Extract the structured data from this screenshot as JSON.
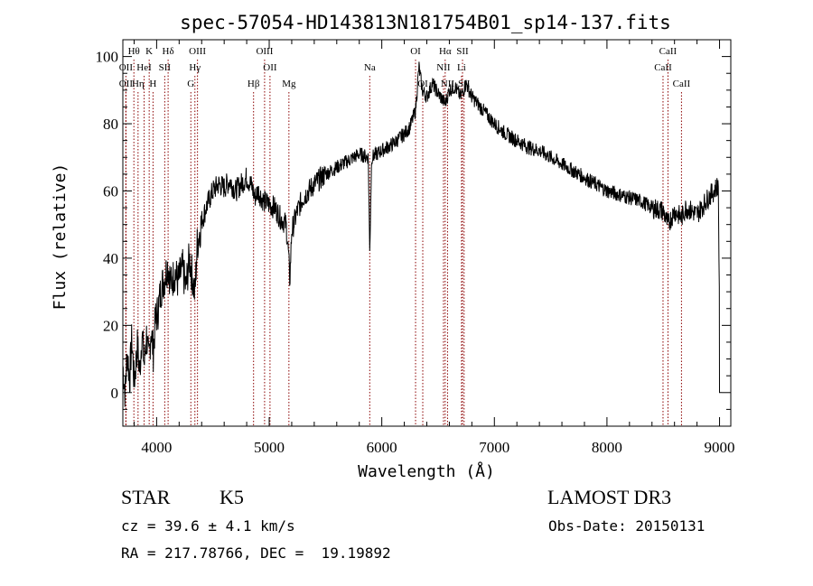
{
  "chart_data": {
    "type": "line",
    "title": "spec-57054-HD143813N181754B01_sp14-137.fits",
    "xlabel": "Wavelength (Å)",
    "ylabel": "Flux (relative)",
    "xlim": [
      3700,
      9100
    ],
    "ylim": [
      -10,
      105
    ],
    "xticks": [
      4000,
      5000,
      6000,
      7000,
      8000,
      9000
    ],
    "yticks": [
      0,
      20,
      40,
      60,
      80,
      100
    ],
    "grid": false,
    "line_color": "#000000",
    "marker_color": "#8b0000",
    "spectrum_anchors": [
      [
        3700,
        8
      ],
      [
        3720,
        0
      ],
      [
        3740,
        12
      ],
      [
        3760,
        4
      ],
      [
        3780,
        16
      ],
      [
        3800,
        3
      ],
      [
        3830,
        14
      ],
      [
        3850,
        6
      ],
      [
        3870,
        18
      ],
      [
        3890,
        8
      ],
      [
        3910,
        17
      ],
      [
        3930,
        9
      ],
      [
        3950,
        19
      ],
      [
        3970,
        12
      ],
      [
        3990,
        22
      ],
      [
        4010,
        24
      ],
      [
        4040,
        31
      ],
      [
        4070,
        34
      ],
      [
        4100,
        38
      ],
      [
        4130,
        32
      ],
      [
        4160,
        36
      ],
      [
        4190,
        33
      ],
      [
        4230,
        37
      ],
      [
        4260,
        31
      ],
      [
        4290,
        40
      ],
      [
        4320,
        34
      ],
      [
        4340,
        29
      ],
      [
        4360,
        44
      ],
      [
        4400,
        51
      ],
      [
        4450,
        56
      ],
      [
        4500,
        60
      ],
      [
        4550,
        62
      ],
      [
        4600,
        61
      ],
      [
        4650,
        63
      ],
      [
        4700,
        60
      ],
      [
        4750,
        62
      ],
      [
        4800,
        64
      ],
      [
        4850,
        61
      ],
      [
        4870,
        58
      ],
      [
        4900,
        60
      ],
      [
        4950,
        57
      ],
      [
        5000,
        56
      ],
      [
        5050,
        55
      ],
      [
        5100,
        52
      ],
      [
        5150,
        50
      ],
      [
        5170,
        42
      ],
      [
        5183,
        33
      ],
      [
        5200,
        48
      ],
      [
        5250,
        54
      ],
      [
        5300,
        58
      ],
      [
        5400,
        62
      ],
      [
        5500,
        65
      ],
      [
        5600,
        67
      ],
      [
        5700,
        69
      ],
      [
        5800,
        71
      ],
      [
        5880,
        70
      ],
      [
        5893,
        42
      ],
      [
        5910,
        70
      ],
      [
        6000,
        72
      ],
      [
        6100,
        74
      ],
      [
        6200,
        77
      ],
      [
        6250,
        79
      ],
      [
        6300,
        84
      ],
      [
        6330,
        97
      ],
      [
        6360,
        90
      ],
      [
        6400,
        88
      ],
      [
        6450,
        92
      ],
      [
        6500,
        89
      ],
      [
        6563,
        86
      ],
      [
        6600,
        90
      ],
      [
        6650,
        91
      ],
      [
        6700,
        88
      ],
      [
        6750,
        92
      ],
      [
        6800,
        88
      ],
      [
        6850,
        86
      ],
      [
        6900,
        84
      ],
      [
        7000,
        80
      ],
      [
        7100,
        77
      ],
      [
        7200,
        75
      ],
      [
        7300,
        73
      ],
      [
        7400,
        72
      ],
      [
        7500,
        70
      ],
      [
        7600,
        68
      ],
      [
        7700,
        66
      ],
      [
        7800,
        64
      ],
      [
        7900,
        62
      ],
      [
        8000,
        60
      ],
      [
        8100,
        59
      ],
      [
        8200,
        58
      ],
      [
        8300,
        57
      ],
      [
        8400,
        55
      ],
      [
        8500,
        54
      ],
      [
        8542,
        50
      ],
      [
        8600,
        54
      ],
      [
        8662,
        52
      ],
      [
        8700,
        55
      ],
      [
        8800,
        53
      ],
      [
        8900,
        58
      ],
      [
        8950,
        60
      ],
      [
        8990,
        62
      ],
      [
        9000,
        20
      ]
    ],
    "lines": [
      {
        "label": "Hθ",
        "x": 3798,
        "row": 0
      },
      {
        "label": "OII",
        "x": 3727,
        "row": 1
      },
      {
        "label": "OII",
        "x": 3727,
        "row": 2
      },
      {
        "label": "Hη",
        "x": 3835,
        "row": 2
      },
      {
        "label": "K",
        "x": 3934,
        "row": 0
      },
      {
        "label": "HeI",
        "x": 3889,
        "row": 1
      },
      {
        "label": "SII",
        "x": 4072,
        "row": 1
      },
      {
        "label": "H",
        "x": 3968,
        "row": 2
      },
      {
        "label": "Hδ",
        "x": 4102,
        "row": 0
      },
      {
        "label": "OIII",
        "x": 4363,
        "row": 0
      },
      {
        "label": "Hγ",
        "x": 4340,
        "row": 1
      },
      {
        "label": "G",
        "x": 4304,
        "row": 2
      },
      {
        "label": "OIII",
        "x": 4959,
        "row": 0
      },
      {
        "label": "OII",
        "x": 5007,
        "row": 1
      },
      {
        "label": "Hβ",
        "x": 4861,
        "row": 2
      },
      {
        "label": "Mg",
        "x": 5175,
        "row": 2
      },
      {
        "label": "Na",
        "x": 5893,
        "row": 1
      },
      {
        "label": "OI",
        "x": 6300,
        "row": 0
      },
      {
        "label": "OI",
        "x": 6364,
        "row": 2
      },
      {
        "label": "Hα",
        "x": 6563,
        "row": 0
      },
      {
        "label": "NII",
        "x": 6548,
        "row": 1
      },
      {
        "label": "NII",
        "x": 6584,
        "row": 2
      },
      {
        "label": "SII",
        "x": 6717,
        "row": 0
      },
      {
        "label": "Li",
        "x": 6708,
        "row": 1
      },
      {
        "label": "SII",
        "x": 6731,
        "row": 2
      },
      {
        "label": "CaII",
        "x": 8542,
        "row": 0
      },
      {
        "label": "CaII",
        "x": 8498,
        "row": 1
      },
      {
        "label": "CaII",
        "x": 8662,
        "row": 2
      }
    ]
  },
  "info": {
    "class_label": "STAR",
    "subclass": "K5",
    "survey": "LAMOST DR3",
    "redshift_line": "cz = 39.6 ± 4.1 km/s",
    "obs_date_line": "Obs-Date: 20150131",
    "coords_line": "RA = 217.78766, DEC =  19.19892"
  }
}
